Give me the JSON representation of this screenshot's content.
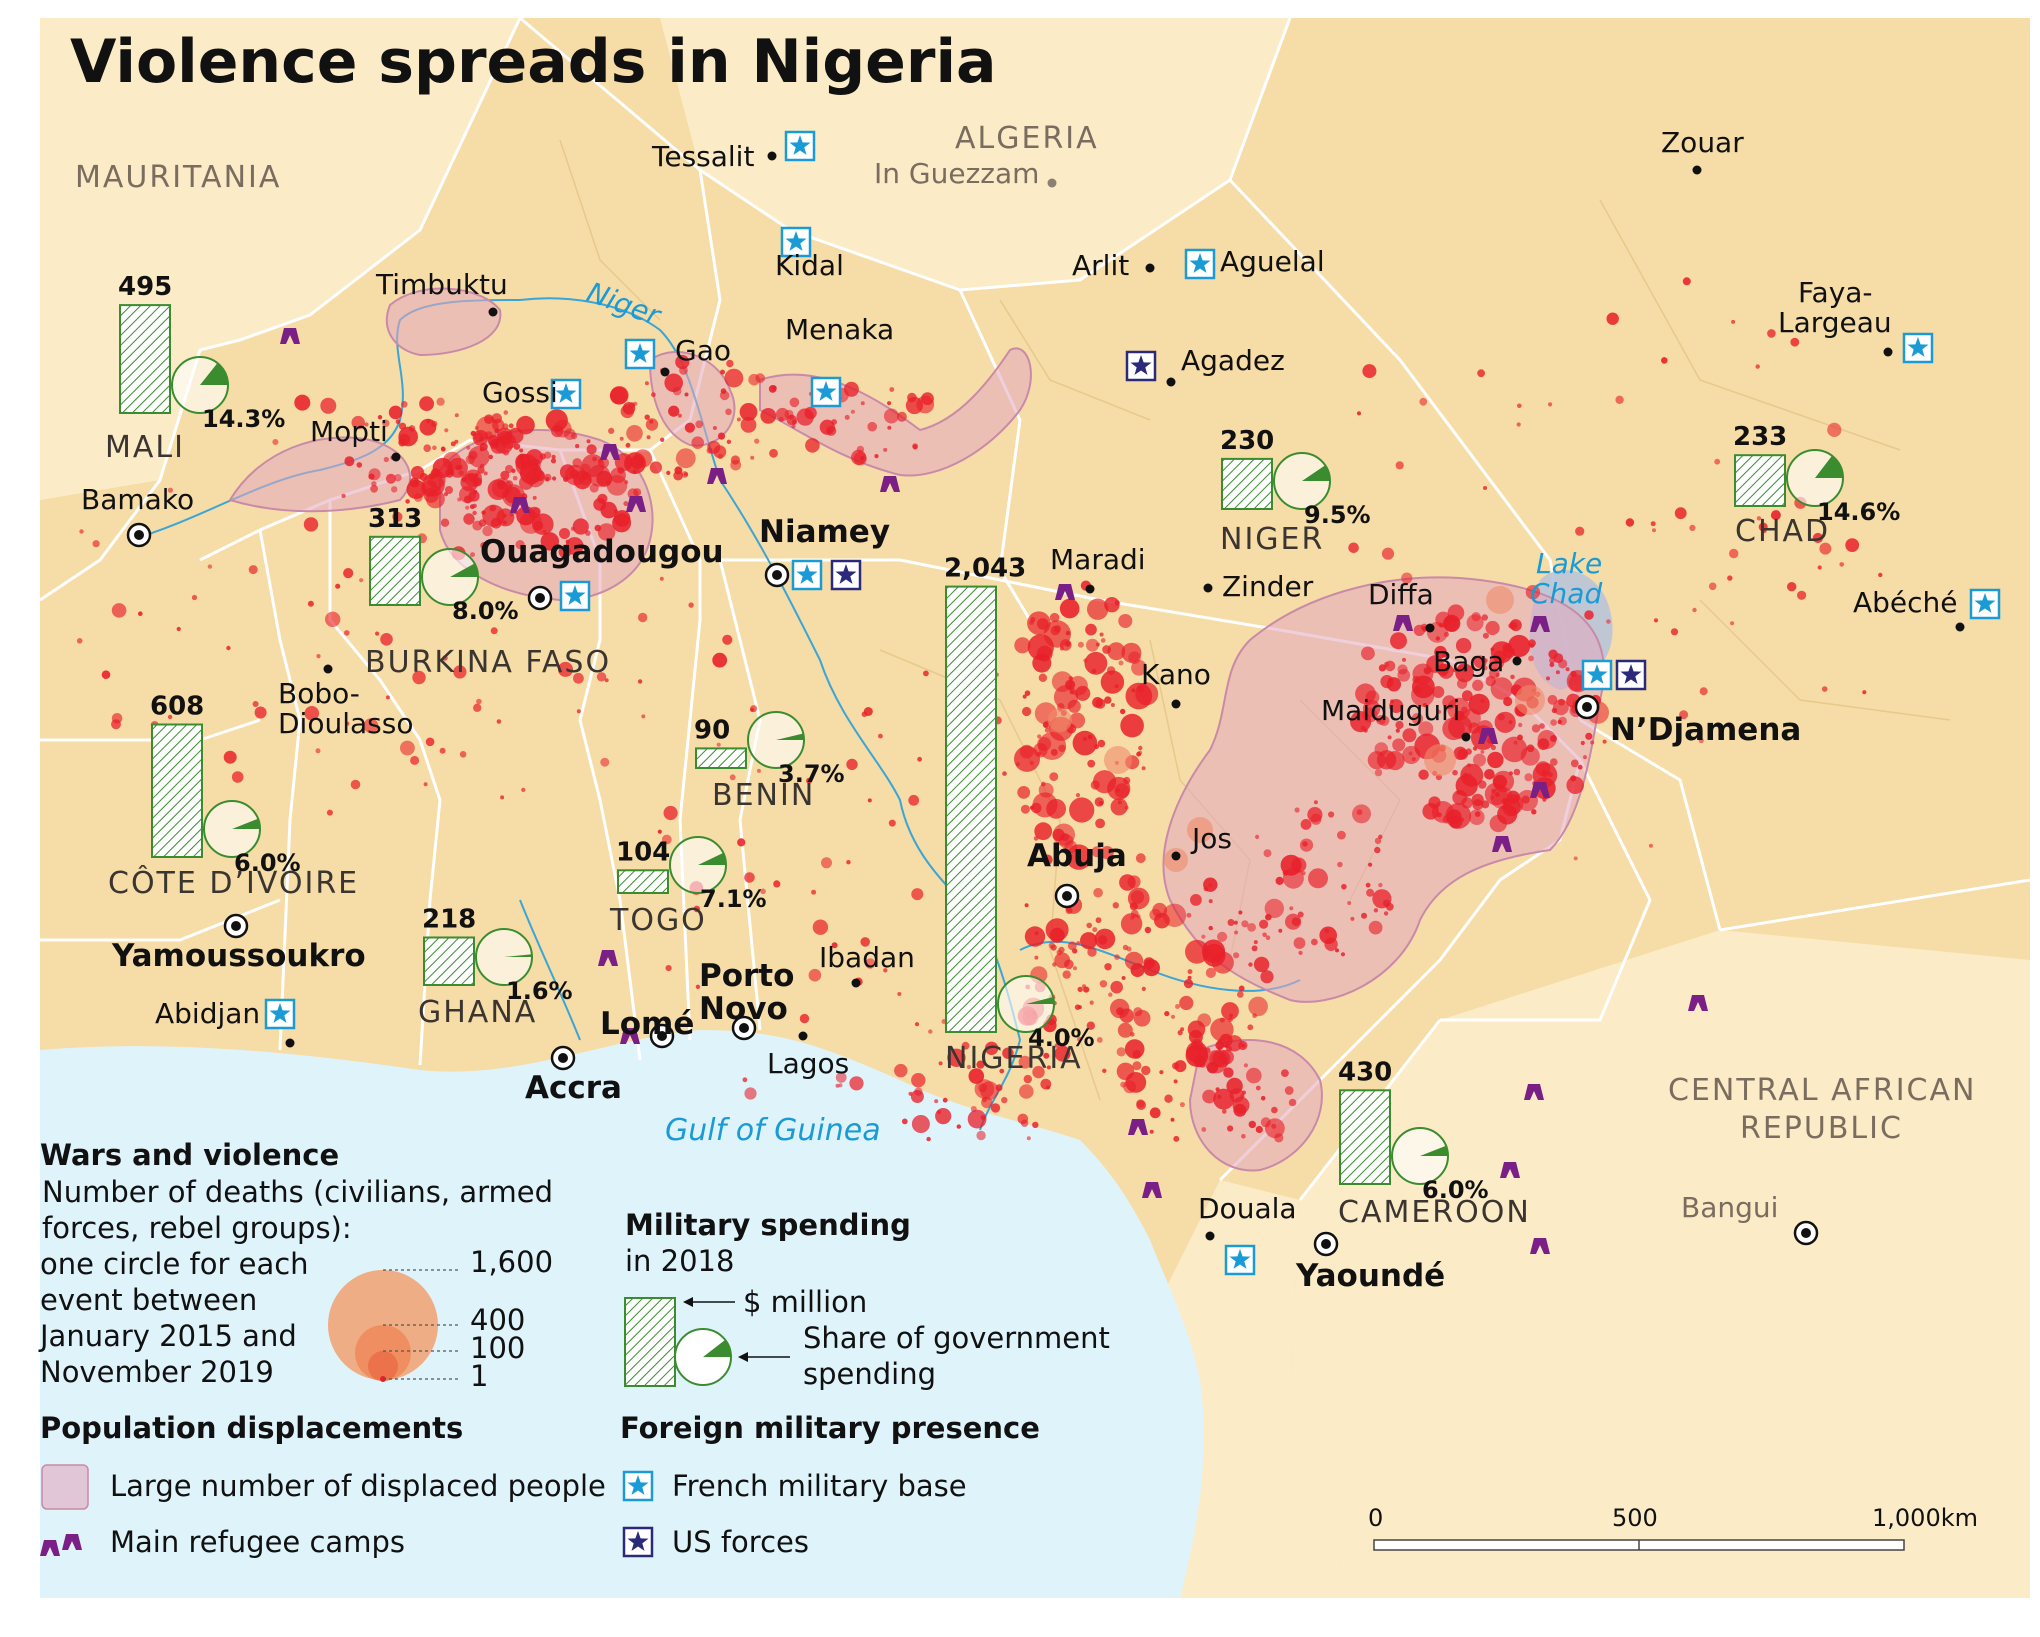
{
  "title": "Violence spreads in Nigeria",
  "colors": {
    "land": "#f6dca6",
    "land_light": "#fbecc7",
    "sea": "#dff3fb",
    "border": "#ffffff",
    "river": "#3aa5d6",
    "event": "#e8202a",
    "displaced": "#e3a8c0",
    "bar": "#3b8c2f",
    "camp": "#7a1f86",
    "french": "#1a9bd6",
    "us": "#2b2a7a",
    "legend_circle": "#f2a070"
  },
  "countries": [
    {
      "id": "mauritania",
      "label": "MAURITANIA"
    },
    {
      "id": "algeria",
      "label": "ALGERIA"
    },
    {
      "id": "mali",
      "label": "MALI"
    },
    {
      "id": "burkina",
      "label": "BURKINA FASO"
    },
    {
      "id": "niger",
      "label": "NIGER"
    },
    {
      "id": "chad",
      "label": "CHAD"
    },
    {
      "id": "cotedivoire",
      "label": "CÔTE D’IVOIRE"
    },
    {
      "id": "ghana",
      "label": "GHANA"
    },
    {
      "id": "togo",
      "label": "TOGO"
    },
    {
      "id": "benin",
      "label": "BENIN"
    },
    {
      "id": "nigeria",
      "label": "NIGERIA"
    },
    {
      "id": "cameroon",
      "label": "CAMEROON"
    },
    {
      "id": "car",
      "label": "CENTRAL AFRICAN REPUBLIC"
    }
  ],
  "cities": [
    {
      "id": "tessalit",
      "label": "Tessalit"
    },
    {
      "id": "inguezzam",
      "label": "In Guezzam"
    },
    {
      "id": "zouar",
      "label": "Zouar"
    },
    {
      "id": "kidal",
      "label": "Kidal"
    },
    {
      "id": "timbuktu",
      "label": "Timbuktu"
    },
    {
      "id": "arlit",
      "label": "Arlit"
    },
    {
      "id": "aguelal",
      "label": "Aguelal"
    },
    {
      "id": "faya",
      "label": "Faya-Largeau"
    },
    {
      "id": "gao",
      "label": "Gao"
    },
    {
      "id": "menaka",
      "label": "Menaka"
    },
    {
      "id": "agadez",
      "label": "Agadez"
    },
    {
      "id": "gossi",
      "label": "Gossi"
    },
    {
      "id": "mopti",
      "label": "Mopti"
    },
    {
      "id": "bamako",
      "label": "Bamako"
    },
    {
      "id": "niamey",
      "label": "Niamey"
    },
    {
      "id": "ouagadougou",
      "label": "Ouagadougou"
    },
    {
      "id": "maradi",
      "label": "Maradi"
    },
    {
      "id": "zinder",
      "label": "Zinder"
    },
    {
      "id": "diffa",
      "label": "Diffa"
    },
    {
      "id": "abeche",
      "label": "Abéché"
    },
    {
      "id": "baga",
      "label": "Baga"
    },
    {
      "id": "ndjamena",
      "label": "N’Djamena"
    },
    {
      "id": "kano",
      "label": "Kano"
    },
    {
      "id": "maiduguri",
      "label": "Maiduguri"
    },
    {
      "id": "bobo",
      "label": "Bobo-Dioulasso"
    },
    {
      "id": "jos",
      "label": "Jos"
    },
    {
      "id": "abuja",
      "label": "Abuja"
    },
    {
      "id": "yamoussoukro",
      "label": "Yamoussoukro"
    },
    {
      "id": "abidjan",
      "label": "Abidjan"
    },
    {
      "id": "lome",
      "label": "Lomé"
    },
    {
      "id": "portonovo",
      "label": "Porto Novo"
    },
    {
      "id": "ibadan",
      "label": "Ibadan"
    },
    {
      "id": "lagos",
      "label": "Lagos"
    },
    {
      "id": "accra",
      "label": "Accra"
    },
    {
      "id": "douala",
      "label": "Douala"
    },
    {
      "id": "yaounde",
      "label": "Yaoundé"
    },
    {
      "id": "bangui",
      "label": "Bangui"
    }
  ],
  "water_labels": [
    {
      "id": "niger_river",
      "label": "Niger"
    },
    {
      "id": "lake_chad",
      "label": "Lake Chad"
    },
    {
      "id": "gulf",
      "label": "Gulf of Guinea"
    }
  ],
  "military_spending": [
    {
      "country": "Mali",
      "million_usd": 495,
      "share_pct": 14.3,
      "value_label": "495",
      "share_label": "14.3%"
    },
    {
      "country": "Burkina Faso",
      "million_usd": 313,
      "share_pct": 8.0,
      "value_label": "313",
      "share_label": "8.0%"
    },
    {
      "country": "Côte d’Ivoire",
      "million_usd": 608,
      "share_pct": 6.0,
      "value_label": "608",
      "share_label": "6.0%"
    },
    {
      "country": "Benin",
      "million_usd": 90,
      "share_pct": 3.7,
      "value_label": "90",
      "share_label": "3.7%"
    },
    {
      "country": "Togo",
      "million_usd": 104,
      "share_pct": 7.1,
      "value_label": "104",
      "share_label": "7.1%"
    },
    {
      "country": "Ghana",
      "million_usd": 218,
      "share_pct": 1.6,
      "value_label": "218",
      "share_label": "1.6%"
    },
    {
      "country": "Nigeria",
      "million_usd": 2043,
      "share_pct": 4.0,
      "value_label": "2,043",
      "share_label": "4.0%"
    },
    {
      "country": "Niger",
      "million_usd": 230,
      "share_pct": 9.5,
      "value_label": "230",
      "share_label": "9.5%"
    },
    {
      "country": "Chad",
      "million_usd": 233,
      "share_pct": 14.6,
      "value_label": "233",
      "share_label": "14.6%"
    },
    {
      "country": "Cameroon",
      "million_usd": 430,
      "share_pct": 6.0,
      "value_label": "430",
      "share_label": "6.0%"
    }
  ],
  "legend": {
    "wars_title": "Wars and violence",
    "wars_desc_1": "Number of deaths (civilians, armed",
    "wars_desc_2": "forces, rebel groups):",
    "wars_desc_3": "one circle for each",
    "wars_desc_4": "event between",
    "wars_desc_5": "January 2015 and",
    "wars_desc_6": "November 2019",
    "circle_values": [
      "1,600",
      "400",
      "100",
      "1"
    ],
    "spending_title": "Military spending",
    "spending_sub": "in 2018",
    "spending_unit": "$ million",
    "spending_share_1": "Share of government",
    "spending_share_2": "spending",
    "displace_title": "Population displacements",
    "displace_item": "Large number of displaced people",
    "camps_item": "Main refugee camps",
    "foreign_title": "Foreign military presence",
    "french_item": "French military base",
    "us_item": "US forces"
  },
  "scale": {
    "ticks": [
      "0",
      "500",
      "1,000km"
    ]
  }
}
